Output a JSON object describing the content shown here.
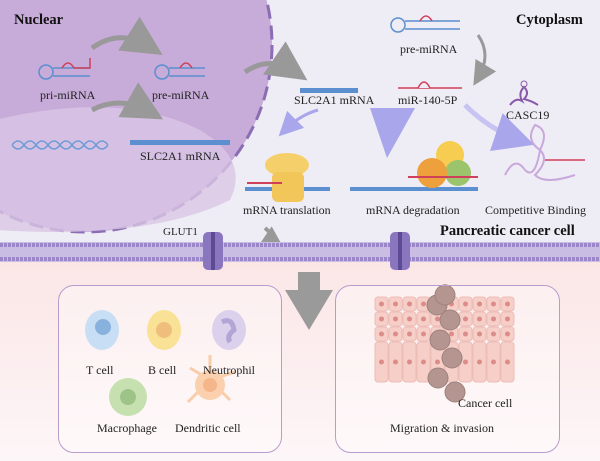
{
  "regions": {
    "nuclear": "Nuclear",
    "cytoplasm": "Cytoplasm",
    "cell": "Pancreatic cancer cell"
  },
  "nucleus": {
    "pri_mirna": "pri-miRNA",
    "pre_mirna": "pre-miRNA",
    "mrna": "SLC2A1 mRNA"
  },
  "cytoplasm": {
    "pre_mirna": "pre-miRNA",
    "mirna": "miR-140-5P",
    "mrna": "SLC2A1 mRNA",
    "lncrna": "CASC19",
    "translation": "mRNA translation",
    "degradation": "mRNA degradation",
    "binding": "Competitive Binding"
  },
  "membrane": {
    "transporter": "GLUT1"
  },
  "immune_panel": {
    "cells": [
      "T cell",
      "B cell",
      "Neutrophil",
      "Macrophage",
      "Dendritic cell"
    ]
  },
  "tumor_panel": {
    "cancer_cell": "Cancer cell",
    "caption": "Migration & invasion"
  },
  "colors": {
    "nucleus": "#c9aed8",
    "membrane": "#9b86c9",
    "mirna": "#d0405a",
    "mrna": "#5b8fd0",
    "arrow": "#9a9a9a"
  }
}
